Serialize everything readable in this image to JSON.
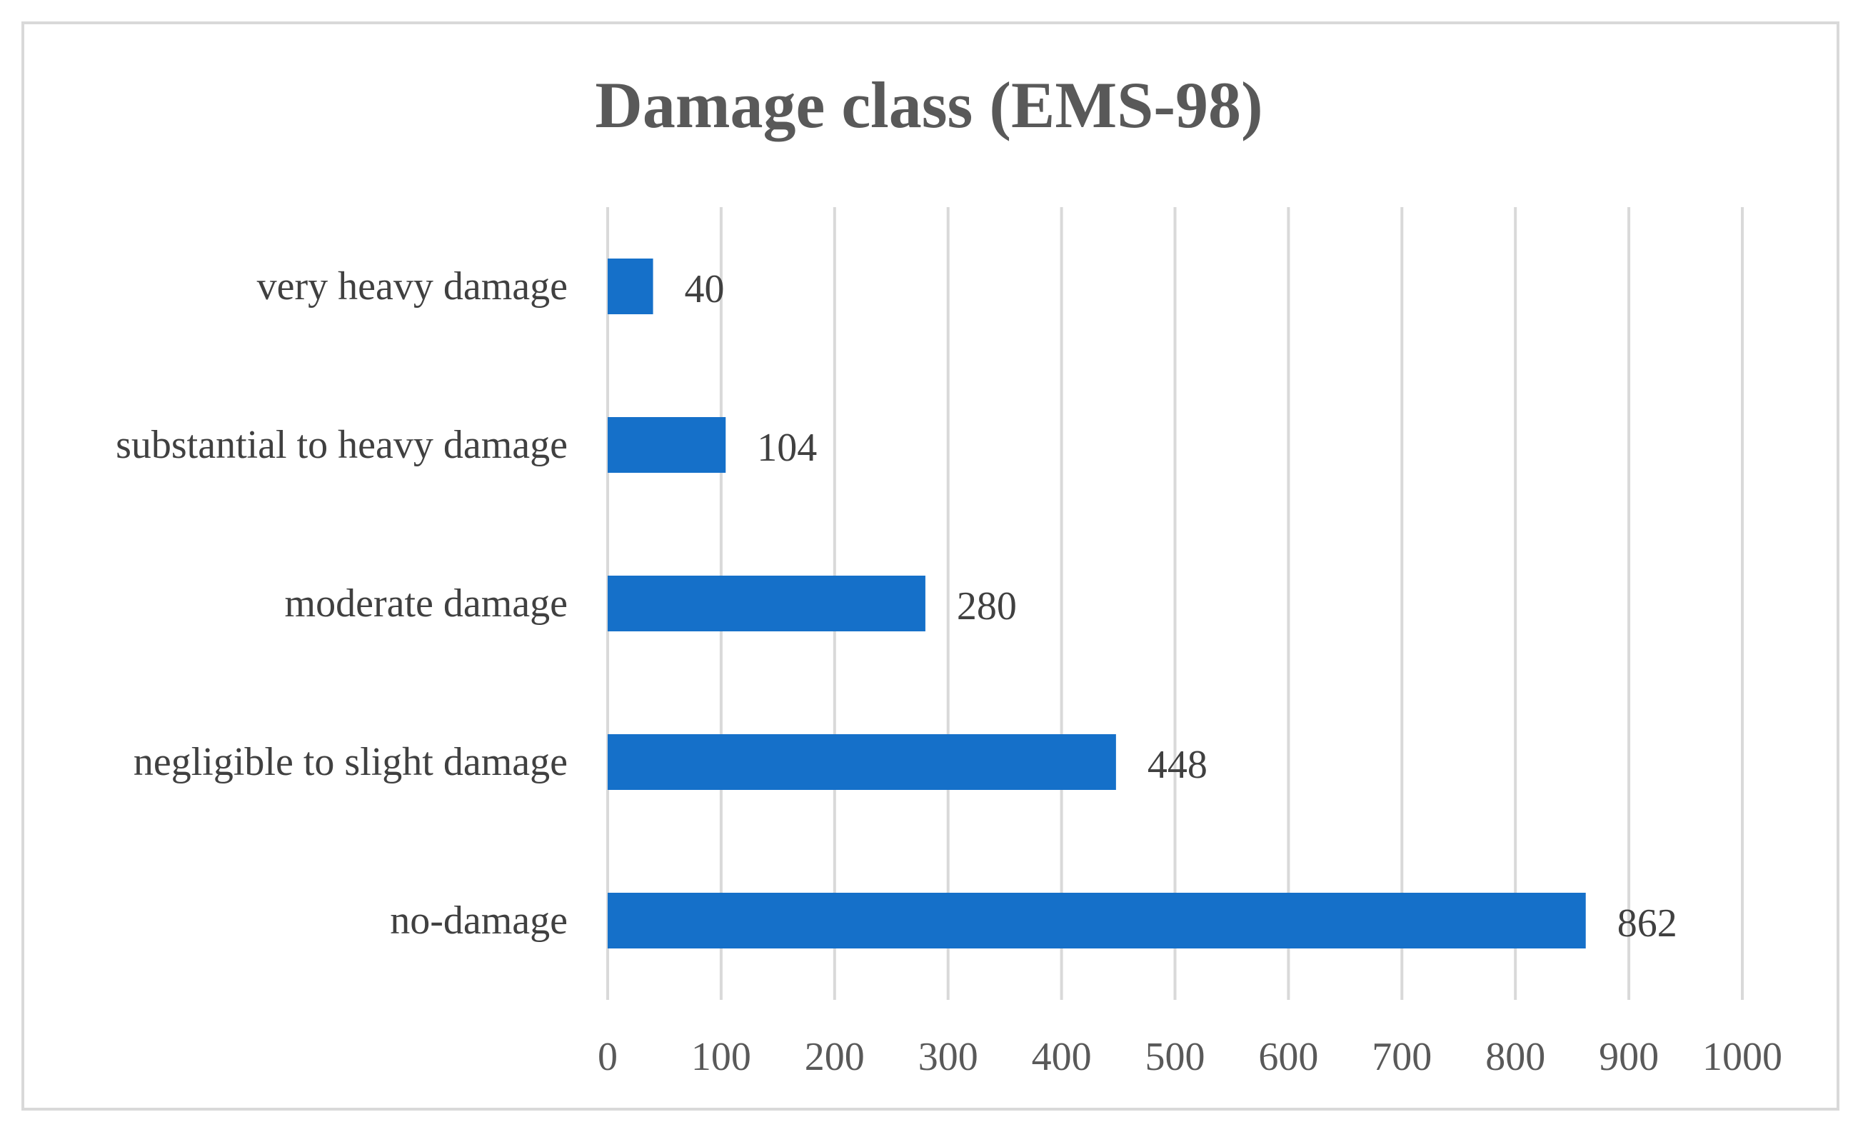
{
  "chart_data": {
    "type": "bar",
    "orientation": "horizontal",
    "title": "Damage class (EMS-98)",
    "categories": [
      "very heavy damage",
      "substantial to heavy damage",
      "moderate damage",
      "negligible to slight damage",
      "no-damage"
    ],
    "values": [
      40,
      104,
      280,
      448,
      862
    ],
    "xlim": [
      0,
      1000
    ],
    "xticks": [
      0,
      100,
      200,
      300,
      400,
      500,
      600,
      700,
      800,
      900,
      1000
    ],
    "grid": "vertical",
    "legend": "none",
    "bar_color": "#1570C9",
    "grid_color": "#d9d9d9"
  }
}
